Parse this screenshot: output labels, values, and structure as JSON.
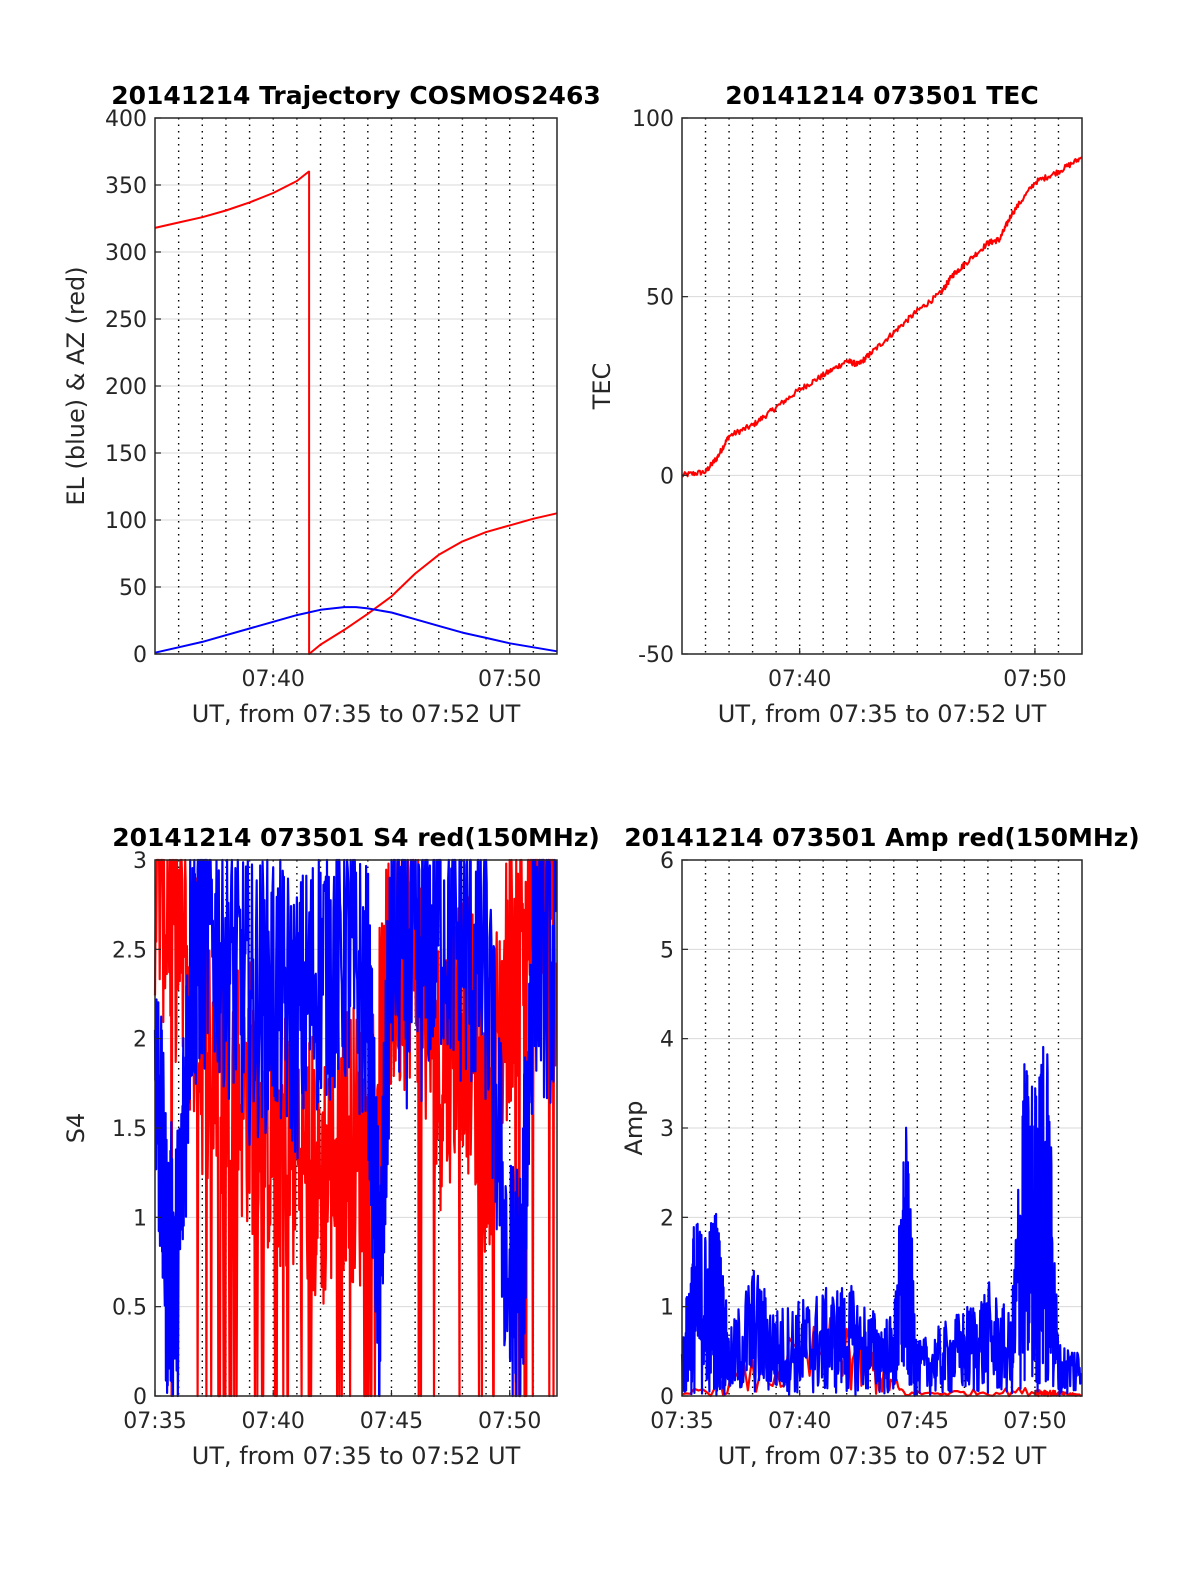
{
  "chart_data": [
    {
      "type": "line",
      "title": "20141214 Trajectory COSMOS2463",
      "xlabel": "UT, from 07:35 to 07:52 UT",
      "ylabel": "EL (blue) & AZ (red)",
      "x_unit": "minutes",
      "xlim": [
        "07:35",
        "07:52"
      ],
      "xtick_labels": [
        "07:40",
        "07:50"
      ],
      "ylim": [
        0,
        400
      ],
      "yticks": [
        0,
        50,
        100,
        150,
        200,
        250,
        300,
        350,
        400
      ],
      "grid": {
        "vertical": "dotted every 1 min",
        "horizontal": "solid light"
      },
      "series": [
        {
          "color": "#ff0000",
          "x": [
            "07:35",
            "07:36",
            "07:37",
            "07:38",
            "07:39",
            "07:40",
            "07:41",
            "07:41:30",
            "07:41:31",
            "07:42",
            "07:43",
            "07:44",
            "07:45",
            "07:46",
            "07:47",
            "07:48",
            "07:49",
            "07:50",
            "07:51",
            "07:52"
          ],
          "values": [
            318,
            322,
            326,
            331,
            337,
            344,
            353,
            360,
            0,
            7,
            18,
            30,
            43,
            60,
            74,
            84,
            91,
            96,
            101,
            105
          ]
        },
        {
          "color": "#0000ff",
          "x": [
            "07:35",
            "07:36",
            "07:37",
            "07:38",
            "07:39",
            "07:40",
            "07:41",
            "07:42",
            "07:43",
            "07:43:30",
            "07:44",
            "07:45",
            "07:46",
            "07:47",
            "07:48",
            "07:49",
            "07:50",
            "07:51",
            "07:52"
          ],
          "values": [
            1,
            5,
            9,
            14,
            19,
            24,
            29,
            33,
            35,
            35,
            34,
            31,
            26,
            21,
            16,
            12,
            8,
            5,
            2
          ]
        }
      ]
    },
    {
      "type": "line",
      "title": "20141214 073501 TEC",
      "xlabel": "UT, from 07:35 to 07:52 UT",
      "ylabel": "TEC",
      "xlim": [
        "07:35",
        "07:52"
      ],
      "xtick_labels": [
        "07:40",
        "07:50"
      ],
      "ylim": [
        -50,
        100
      ],
      "yticks": [
        -50,
        0,
        50,
        100
      ],
      "grid": {
        "vertical": "dotted every 1 min",
        "horizontal": "solid light"
      },
      "series": [
        {
          "color": "#ff0000",
          "x": [
            "07:35",
            "07:36",
            "07:36:30",
            "07:37",
            "07:38",
            "07:39",
            "07:40",
            "07:41",
            "07:42",
            "07:42:30",
            "07:43",
            "07:44",
            "07:45",
            "07:46",
            "07:46:30",
            "07:47",
            "07:48",
            "07:48:30",
            "07:49",
            "07:50",
            "07:51",
            "07:52"
          ],
          "values": [
            0,
            1,
            5,
            11,
            14,
            19,
            24,
            28,
            32,
            31,
            34,
            40,
            46,
            51,
            56,
            59,
            65,
            66,
            73,
            82,
            85,
            89
          ]
        }
      ]
    },
    {
      "type": "line",
      "title": "20141214 073501 S4 red(150MHz)",
      "xlabel": "UT, from 07:35 to 07:52 UT",
      "ylabel": "S4",
      "xlim": [
        "07:35",
        "07:52"
      ],
      "xtick_labels": [
        "07:35",
        "07:40",
        "07:45",
        "07:50"
      ],
      "ylim": [
        0,
        3
      ],
      "yticks": [
        0,
        0.5,
        1,
        1.5,
        2,
        2.5,
        3
      ],
      "grid": {
        "vertical": "dotted every 1 min",
        "horizontal": "solid light"
      },
      "series": [
        {
          "color": "#ff0000",
          "x": [
            "07:35",
            "07:36",
            "07:37",
            "07:38",
            "07:39",
            "07:40",
            "07:41",
            "07:42",
            "07:43",
            "07:44",
            "07:45",
            "07:46",
            "07:47",
            "07:48",
            "07:49",
            "07:50",
            "07:51",
            "07:52"
          ],
          "values": [
            3,
            2.6,
            2.0,
            1.8,
            1.7,
            1.5,
            1.4,
            1.2,
            1.5,
            1.3,
            2.4,
            2.6,
            1.8,
            2.2,
            1.5,
            2.4,
            2.9,
            2.6
          ]
        },
        {
          "color": "#0000ff",
          "x": [
            "07:35",
            "07:35:30",
            "07:36",
            "07:36:30",
            "07:37",
            "07:38",
            "07:39",
            "07:40",
            "07:41",
            "07:42",
            "07:43",
            "07:44",
            "07:44:30",
            "07:45",
            "07:46",
            "07:47",
            "07:48",
            "07:49",
            "07:50",
            "07:50:30",
            "07:51",
            "07:52"
          ],
          "values": [
            2.0,
            0.75,
            0.75,
            2.4,
            2.6,
            2.5,
            2.2,
            2.3,
            2.1,
            2.4,
            2.5,
            2.2,
            0.5,
            2.6,
            2.3,
            2.7,
            2.5,
            2.4,
            0.55,
            0.55,
            2.6,
            2.3
          ]
        }
      ]
    },
    {
      "type": "line",
      "title": "20141214 073501 Amp red(150MHz)",
      "xlabel": "UT, from 07:35 to 07:52 UT",
      "ylabel": "Amp",
      "xlim": [
        "07:35",
        "07:52"
      ],
      "xtick_labels": [
        "07:35",
        "07:40",
        "07:45",
        "07:50"
      ],
      "ylim": [
        0,
        6
      ],
      "yticks": [
        0,
        1,
        2,
        3,
        4,
        5,
        6
      ],
      "grid": {
        "vertical": "dotted every 1 min",
        "horizontal": "solid light"
      },
      "series": [
        {
          "color": "#ff0000",
          "x": [
            "07:35",
            "07:42",
            "07:44:30",
            "07:50",
            "07:51",
            "07:52"
          ],
          "values": [
            0.02,
            1.0,
            0.05,
            0.1,
            0.05,
            0.02
          ]
        },
        {
          "color": "#0000ff",
          "x": [
            "07:35",
            "07:35:30",
            "07:36",
            "07:36:30",
            "07:37",
            "07:38",
            "07:39",
            "07:40",
            "07:41",
            "07:42",
            "07:43",
            "07:44",
            "07:44:30",
            "07:45",
            "07:46",
            "07:47",
            "07:48",
            "07:49",
            "07:49:30",
            "07:50",
            "07:50:30",
            "07:51",
            "07:52"
          ],
          "values": [
            0.6,
            2.0,
            1.9,
            2.2,
            0.7,
            1.5,
            1.0,
            1.1,
            1.2,
            1.3,
            1.0,
            0.9,
            3.2,
            0.6,
            0.8,
            1.0,
            1.3,
            0.9,
            3.8,
            3.6,
            4.2,
            0.6,
            0.6
          ]
        }
      ]
    }
  ]
}
